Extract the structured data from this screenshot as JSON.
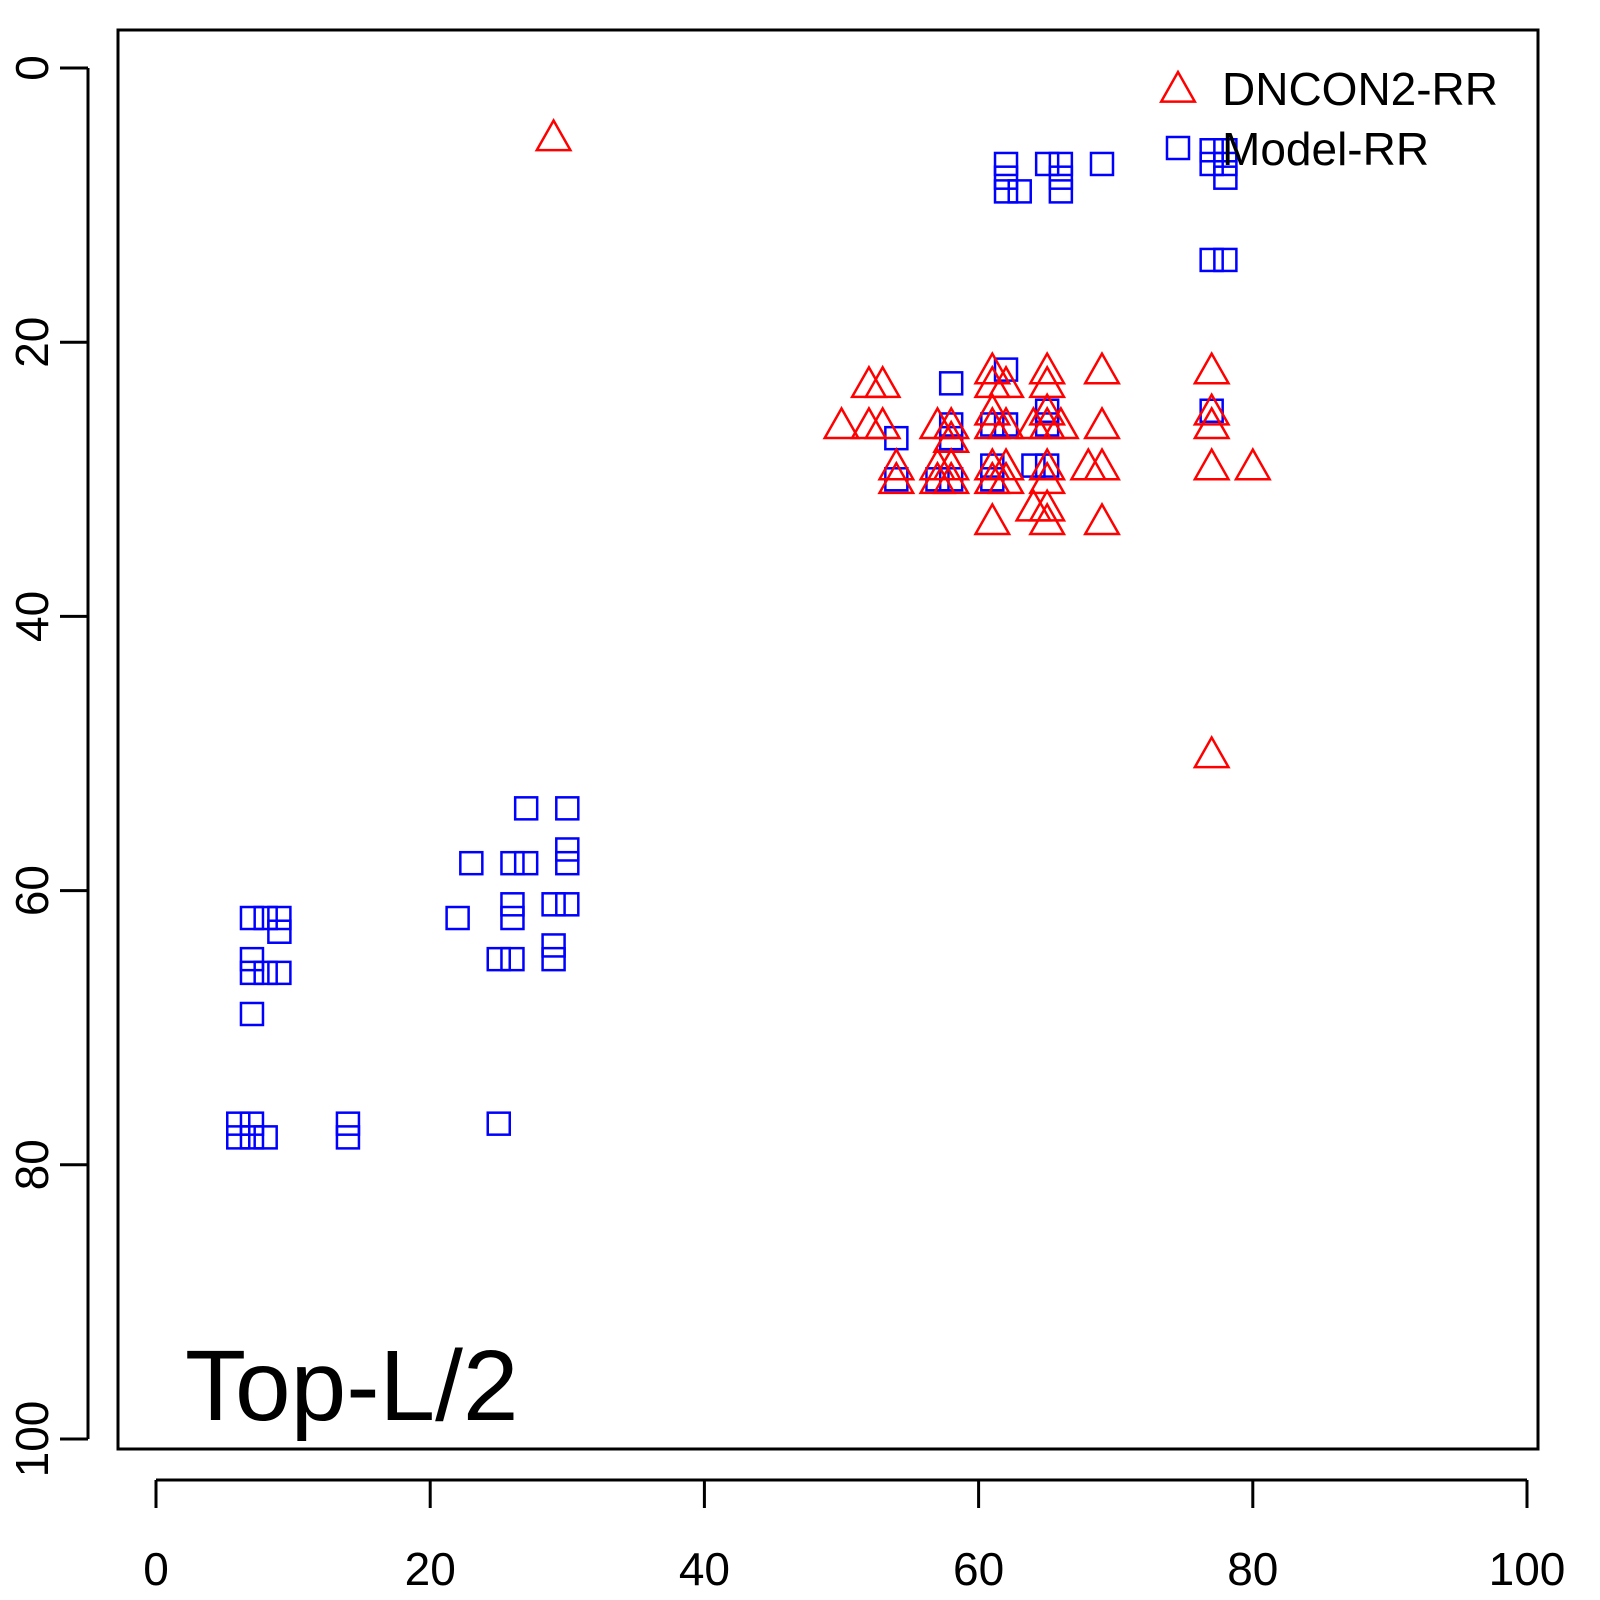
{
  "chart_data": {
    "type": "scatter",
    "title": "",
    "annotation": "Top-L/2",
    "xlabel": "",
    "ylabel": "",
    "xlim": [
      0,
      100
    ],
    "ylim": [
      100,
      0
    ],
    "y_inverted": true,
    "xticks": [
      "0",
      "20",
      "40",
      "60",
      "80",
      "100"
    ],
    "yticks": [
      "0",
      "20",
      "40",
      "60",
      "80",
      "100"
    ],
    "grid": false,
    "legend_position": "top-right",
    "series": [
      {
        "name": "DNCON2-RR",
        "color": "#ff0000",
        "marker": "triangle",
        "points": [
          [
            29,
            5
          ],
          [
            50,
            26
          ],
          [
            52,
            23
          ],
          [
            53,
            23
          ],
          [
            52,
            26
          ],
          [
            53,
            26
          ],
          [
            54,
            29
          ],
          [
            54,
            30
          ],
          [
            57,
            26
          ],
          [
            58,
            26
          ],
          [
            58,
            27
          ],
          [
            57,
            29
          ],
          [
            58,
            29
          ],
          [
            57,
            30
          ],
          [
            58,
            30
          ],
          [
            61,
            22
          ],
          [
            61,
            23
          ],
          [
            62,
            23
          ],
          [
            61,
            25
          ],
          [
            61,
            26
          ],
          [
            62,
            26
          ],
          [
            61,
            29
          ],
          [
            62,
            29
          ],
          [
            61,
            30
          ],
          [
            62,
            30
          ],
          [
            61,
            33
          ],
          [
            65,
            22
          ],
          [
            65,
            23
          ],
          [
            65,
            25
          ],
          [
            64,
            26
          ],
          [
            65,
            26
          ],
          [
            66,
            26
          ],
          [
            65,
            29
          ],
          [
            65,
            30
          ],
          [
            64,
            32
          ],
          [
            65,
            32
          ],
          [
            65,
            33
          ],
          [
            68,
            29
          ],
          [
            69,
            29
          ],
          [
            69,
            22
          ],
          [
            69,
            26
          ],
          [
            69,
            33
          ],
          [
            77,
            22
          ],
          [
            77,
            25
          ],
          [
            77,
            26
          ],
          [
            77,
            29
          ],
          [
            80,
            29
          ],
          [
            77,
            50
          ]
        ]
      },
      {
        "name": "Model-RR",
        "color": "#0000ff",
        "marker": "square",
        "points": [
          [
            27,
            54
          ],
          [
            30,
            54
          ],
          [
            23,
            58
          ],
          [
            26,
            58
          ],
          [
            27,
            58
          ],
          [
            30,
            57
          ],
          [
            30,
            58
          ],
          [
            22,
            62
          ],
          [
            26,
            61
          ],
          [
            26,
            62
          ],
          [
            29,
            61
          ],
          [
            30,
            61
          ],
          [
            25,
            65
          ],
          [
            26,
            65
          ],
          [
            29,
            64
          ],
          [
            29,
            65
          ],
          [
            7,
            62
          ],
          [
            8,
            62
          ],
          [
            9,
            62
          ],
          [
            9,
            63
          ],
          [
            7,
            65
          ],
          [
            7,
            66
          ],
          [
            8,
            66
          ],
          [
            9,
            66
          ],
          [
            7,
            69
          ],
          [
            6,
            77
          ],
          [
            6,
            78
          ],
          [
            7,
            77
          ],
          [
            7,
            78
          ],
          [
            8,
            78
          ],
          [
            14,
            77
          ],
          [
            14,
            78
          ],
          [
            25,
            77
          ],
          [
            62,
            7
          ],
          [
            62,
            8
          ],
          [
            62,
            9
          ],
          [
            63,
            9
          ],
          [
            65,
            7
          ],
          [
            66,
            7
          ],
          [
            66,
            8
          ],
          [
            66,
            9
          ],
          [
            69,
            7
          ],
          [
            77,
            6
          ],
          [
            77,
            7
          ],
          [
            78,
            6
          ],
          [
            78,
            7
          ],
          [
            78,
            8
          ],
          [
            77,
            14
          ],
          [
            78,
            14
          ],
          [
            77,
            25
          ],
          [
            62,
            22
          ],
          [
            58,
            23
          ],
          [
            54,
            27
          ],
          [
            58,
            26
          ],
          [
            58,
            27
          ],
          [
            61,
            26
          ],
          [
            62,
            26
          ],
          [
            65,
            25
          ],
          [
            65,
            26
          ],
          [
            54,
            30
          ],
          [
            57,
            30
          ],
          [
            58,
            30
          ],
          [
            61,
            29
          ],
          [
            61,
            30
          ],
          [
            64,
            29
          ],
          [
            65,
            29
          ]
        ]
      }
    ]
  }
}
